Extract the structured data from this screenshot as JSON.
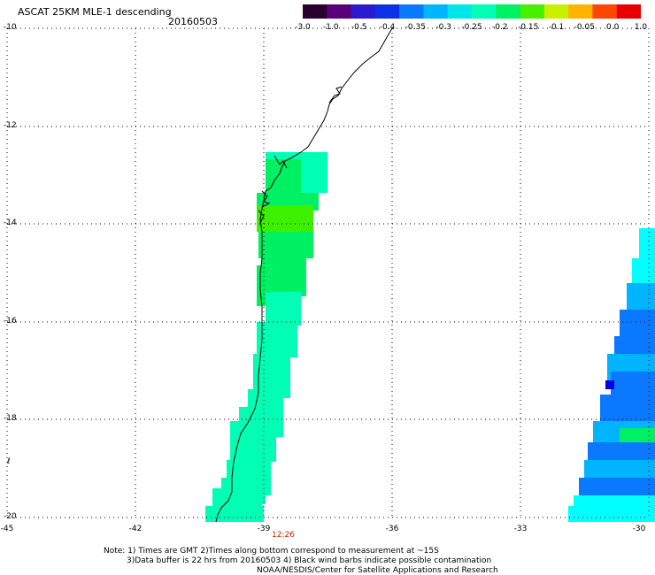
{
  "header": {
    "title": "ASCAT 25KM MLE-1 descending",
    "date": "20160503"
  },
  "colorbar": {
    "ticks": [
      "-3.0",
      "-1.0",
      "-0.5",
      "-0.4",
      "-0.35",
      "-0.3",
      "-0.25",
      "-0.2",
      "-0.15",
      "-0.1",
      "-0.05",
      "0.0",
      "1.0"
    ],
    "colors": [
      "#2a0030",
      "#5a007a",
      "#2a1ad0",
      "#0b32e6",
      "#0a78ff",
      "#00b4ff",
      "#00e6e6",
      "#00ffb4",
      "#00f064",
      "#46f000",
      "#c8f000",
      "#ffb400",
      "#ff4600",
      "#e60000"
    ]
  },
  "map": {
    "lat_labels": [
      "-10",
      "-12",
      "-14",
      "-16",
      "-18",
      "-20"
    ],
    "lon_labels": [
      "-45",
      "-42",
      "-39",
      "-36",
      "-33",
      "-30"
    ],
    "time_marker": "12:26",
    "swath_colors": {
      "deep_blue": "#0000e6",
      "blue": "#0a78ff",
      "light_blue": "#00b4ff",
      "cyan": "#00ffff",
      "aqua_green": "#00ffb4",
      "green": "#00f064",
      "bright_green": "#3cf000"
    }
  },
  "notes": {
    "line1": "Note: 1) Times are GMT 2)Times along bottom correspond to measurement at ~15S",
    "line2": "3)Data buffer is 22 hrs from 20160503 4) Black wind barbs indicate possible contamination",
    "line3": "NOAA/NESDIS/Center for Satellite Applications and Research"
  }
}
